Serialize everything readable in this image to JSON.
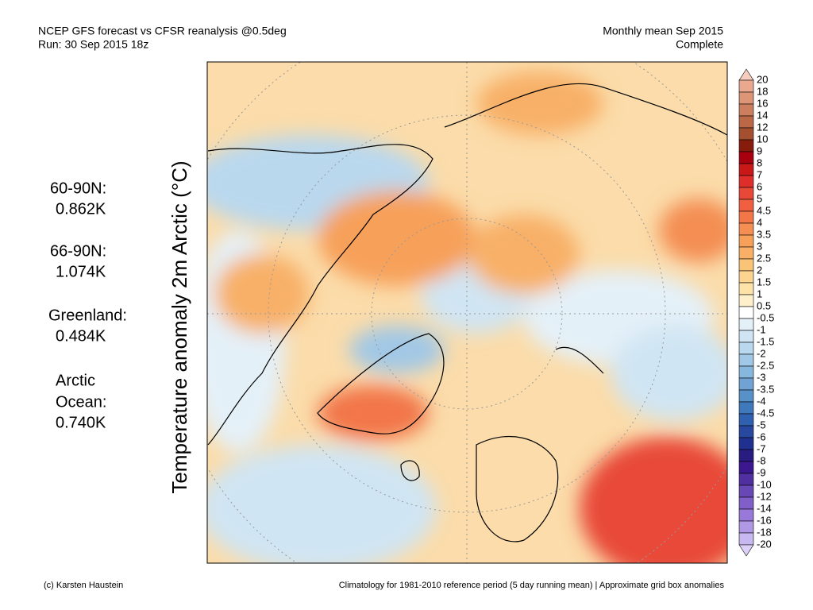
{
  "header": {
    "left": [
      "NCEP GFS forecast vs CFSR reanalysis @0.5deg",
      "Run: 30 Sep 2015 18z"
    ],
    "right": [
      "Monthly mean Sep 2015",
      "Complete"
    ]
  },
  "axis_label": "Temperature anomaly 2m Arctic (°C)",
  "regions": [
    {
      "label_lines": [
        "60-90N:"
      ],
      "value": "0.862K"
    },
    {
      "label_lines": [
        "66-90N:"
      ],
      "value": "1.074K"
    },
    {
      "label_lines": [
        "Greenland:"
      ],
      "value": "0.484K"
    },
    {
      "label_lines": [
        "Arctic",
        "Ocean:"
      ],
      "value": "0.740K"
    }
  ],
  "colorbar": {
    "levels": [
      20,
      18,
      16,
      14,
      12,
      10,
      9,
      8,
      7,
      6,
      5,
      4.5,
      4,
      3.5,
      3,
      2.5,
      2,
      1.5,
      1,
      0.5,
      -0.5,
      -1,
      -1.5,
      -2,
      -2.5,
      -3,
      -3.5,
      -4,
      -4.5,
      -5,
      -6,
      -7,
      -8,
      -9,
      -10,
      -12,
      -14,
      -16,
      -18,
      -20
    ],
    "colors": [
      "#f6cdbd",
      "#eaa88f",
      "#dc9576",
      "#cc7f5e",
      "#bb6848",
      "#a44f30",
      "#861c0c",
      "#a8000e",
      "#c81818",
      "#de2e2c",
      "#e84838",
      "#ef5f40",
      "#f27648",
      "#f48e52",
      "#f7a05a",
      "#f8b068",
      "#fac478",
      "#fcd490",
      "#fde3a8",
      "#fef0cb",
      "#ffffff",
      "#e4f0f8",
      "#d0e5f3",
      "#b9d8ee",
      "#a1c8e6",
      "#88b7dd",
      "#70a3d3",
      "#5890c8",
      "#4078bc",
      "#3060b0",
      "#2848a0",
      "#203090",
      "#281c80",
      "#3c1890",
      "#5030a0",
      "#6848b4",
      "#8060c8",
      "#9878d8",
      "#b098e4",
      "#c8b8f0",
      "#dcd0f8"
    ]
  },
  "footer": {
    "left": "(c) Karsten Haustein",
    "right": "Climatology for 1981-2010 reference period (5 day running mean) | Approximate grid box anomalies"
  }
}
